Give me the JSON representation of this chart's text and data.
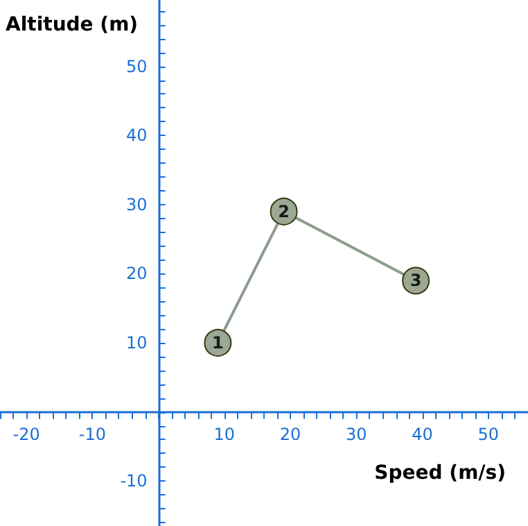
{
  "chart_data": {
    "type": "line",
    "xlabel": "Speed (m/s)",
    "ylabel": "Altitude (m)",
    "x": [
      9,
      19,
      39
    ],
    "series": [
      {
        "color": "#8c9c8c",
        "values": [
          10,
          29,
          19
        ]
      }
    ],
    "annotations": [
      {
        "text": "1",
        "x": 9,
        "y": 10
      },
      {
        "text": "2",
        "x": 19,
        "y": 29
      },
      {
        "text": "3",
        "x": 39,
        "y": 19
      }
    ],
    "marker": "circle",
    "line_style": "solid",
    "xlim": [
      -24,
      56
    ],
    "ylim": [
      -16.5,
      59.6
    ],
    "xticks": [
      {
        "value": -24,
        "label": null
      },
      {
        "value": -22,
        "label": null
      },
      -20,
      {
        "value": -18,
        "label": null
      },
      {
        "value": -16,
        "label": null
      },
      {
        "value": -14,
        "label": null
      },
      {
        "value": -12,
        "label": null
      },
      -10,
      {
        "value": -8,
        "label": null
      },
      {
        "value": -6,
        "label": null
      },
      {
        "value": -4,
        "label": null
      },
      {
        "value": -2,
        "label": null
      },
      {
        "value": 0,
        "label": null
      },
      {
        "value": 2,
        "label": null
      },
      {
        "value": 4,
        "label": null
      },
      {
        "value": 6,
        "label": null
      },
      {
        "value": 8,
        "label": null
      },
      10,
      {
        "value": 12,
        "label": null
      },
      {
        "value": 14,
        "label": null
      },
      {
        "value": 16,
        "label": null
      },
      {
        "value": 18,
        "label": null
      },
      20,
      {
        "value": 22,
        "label": null
      },
      {
        "value": 24,
        "label": null
      },
      {
        "value": 26,
        "label": null
      },
      {
        "value": 28,
        "label": null
      },
      30,
      {
        "value": 32,
        "label": null
      },
      {
        "value": 34,
        "label": null
      },
      {
        "value": 36,
        "label": null
      },
      {
        "value": 38,
        "label": null
      },
      40,
      {
        "value": 42,
        "label": null
      },
      {
        "value": 44,
        "label": null
      },
      {
        "value": 46,
        "label": null
      },
      {
        "value": 48,
        "label": null
      },
      50,
      {
        "value": 52,
        "label": null
      },
      {
        "value": 54,
        "label": null
      }
    ],
    "yticks": [
      {
        "value": -16,
        "label": null
      },
      {
        "value": -14,
        "label": null
      },
      {
        "value": -12,
        "label": null
      },
      -10,
      {
        "value": -8,
        "label": null
      },
      {
        "value": -6,
        "label": null
      },
      {
        "value": -4,
        "label": null
      },
      {
        "value": -2,
        "label": null
      },
      {
        "value": 0,
        "label": null
      },
      {
        "value": 2,
        "label": null
      },
      {
        "value": 4,
        "label": null
      },
      {
        "value": 6,
        "label": null
      },
      {
        "value": 8,
        "label": null
      },
      10,
      {
        "value": 12,
        "label": null
      },
      {
        "value": 14,
        "label": null
      },
      {
        "value": 16,
        "label": null
      },
      {
        "value": 18,
        "label": null
      },
      20,
      {
        "value": 22,
        "label": null
      },
      {
        "value": 24,
        "label": null
      },
      {
        "value": 26,
        "label": null
      },
      {
        "value": 28,
        "label": null
      },
      30,
      {
        "value": 32,
        "label": null
      },
      {
        "value": 34,
        "label": null
      },
      {
        "value": 36,
        "label": null
      },
      {
        "value": 38,
        "label": null
      },
      40,
      {
        "value": 42,
        "label": null
      },
      {
        "value": 44,
        "label": null
      },
      {
        "value": 46,
        "label": null
      },
      {
        "value": 48,
        "label": null
      },
      50,
      {
        "value": 52,
        "label": null
      },
      {
        "value": 54,
        "label": null
      },
      {
        "value": 56,
        "label": null
      },
      {
        "value": 58,
        "label": null
      }
    ]
  }
}
